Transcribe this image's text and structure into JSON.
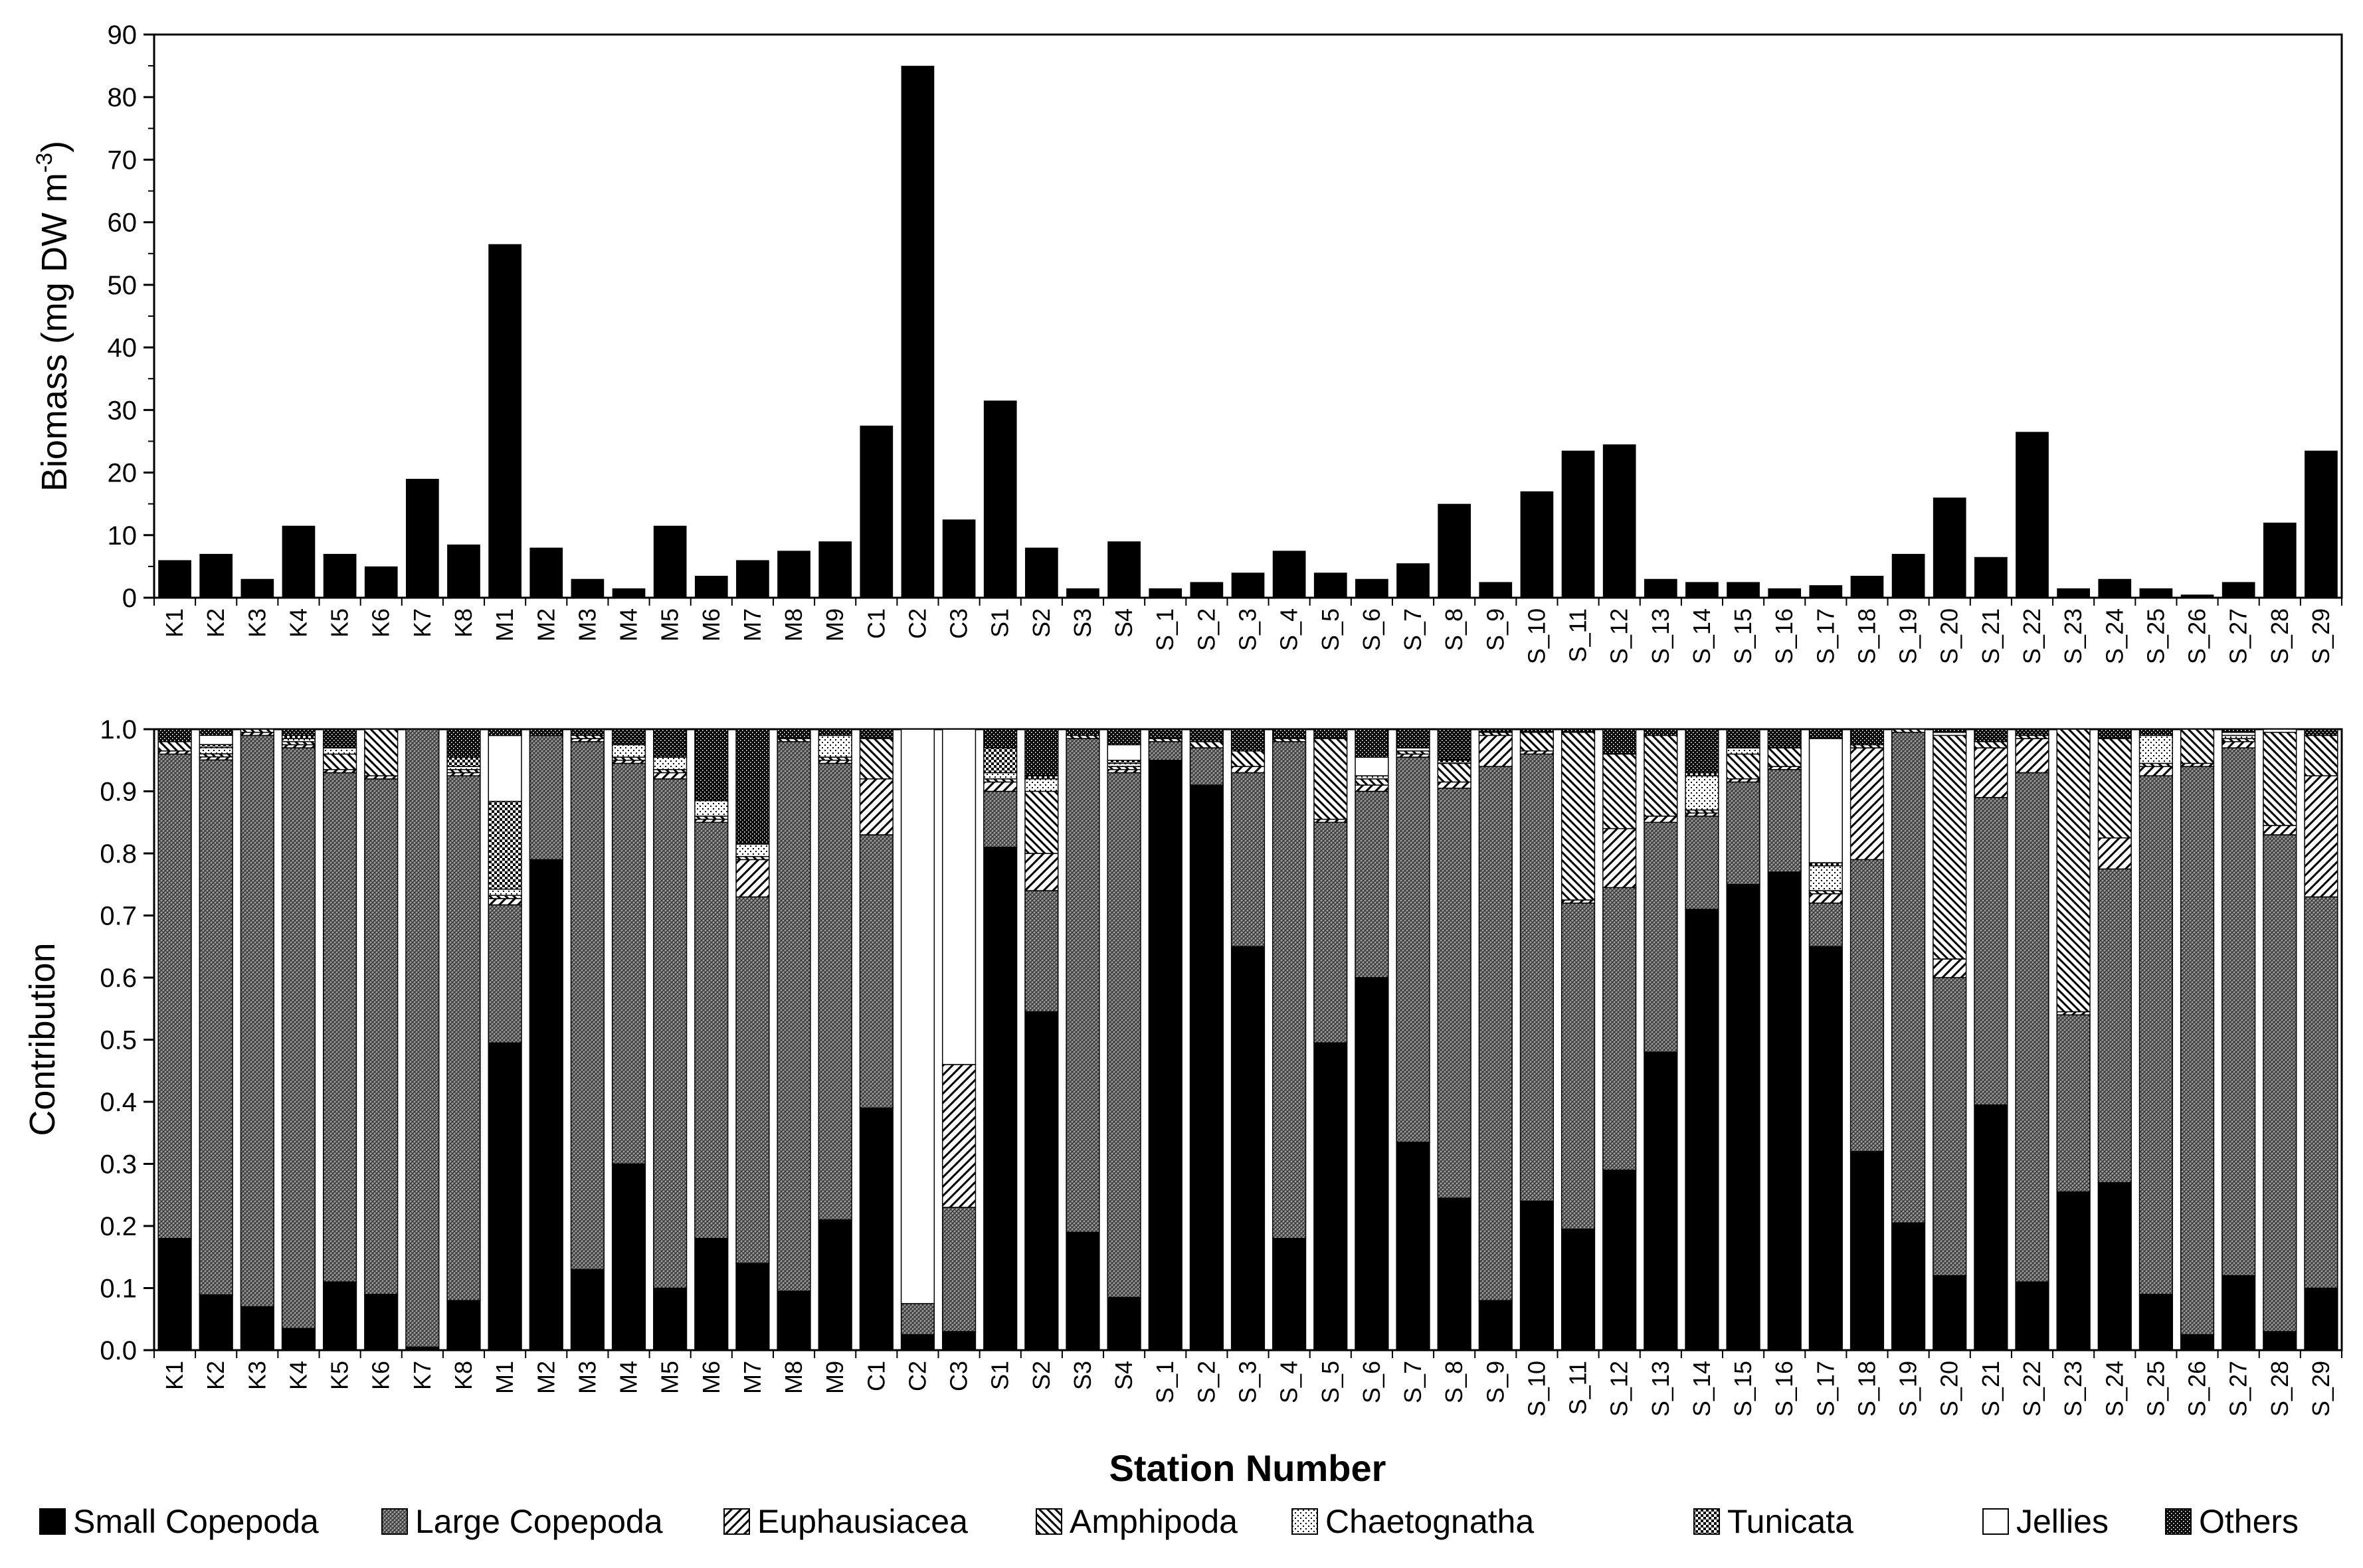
{
  "colors": {
    "small_copepoda": "#000000",
    "large_copepoda": "#7a7a7a",
    "euphausiacea": "#b8b8b8",
    "amphipoda": "#9a9a9a",
    "chaetognatha": "#e6e6e6",
    "tunicata": "#8c8c8c",
    "jellies": "#ffffff",
    "others": "#2e2e2e"
  },
  "chart_data": [
    {
      "type": "bar",
      "ylabel": "Biomass (mg DW m",
      "ylabel_sup": "-3",
      "ylabel_close": ")",
      "ylim": [
        0,
        90
      ],
      "yticks": [
        "0",
        "10",
        "20",
        "30",
        "40",
        "50",
        "60",
        "70",
        "80",
        "90"
      ],
      "categories": [
        "K1",
        "K2",
        "K3",
        "K4",
        "K5",
        "K6",
        "K7",
        "K8",
        "M1",
        "M2",
        "M3",
        "M4",
        "M5",
        "M6",
        "M7",
        "M8",
        "M9",
        "C1",
        "C2",
        "C3",
        "S1",
        "S2",
        "S3",
        "S4",
        "S_1",
        "S_2",
        "S_3",
        "S_4",
        "S_5",
        "S_6",
        "S_7",
        "S_8",
        "S_9",
        "S_10",
        "S_11",
        "S_12",
        "S_13",
        "S_14",
        "S_15",
        "S_16",
        "S_17",
        "S_18",
        "S_19",
        "S_20",
        "S_21",
        "S_22",
        "S_23",
        "S_24",
        "S_25",
        "S_26",
        "S_27",
        "S_28",
        "S_29"
      ],
      "values": [
        6,
        7,
        3,
        11.5,
        7,
        5,
        19,
        8.5,
        56.5,
        8,
        3,
        1.5,
        11.5,
        3.5,
        6,
        7.5,
        9,
        27.5,
        85,
        12.5,
        31.5,
        8,
        1.5,
        9,
        1.5,
        2.5,
        4,
        7.5,
        4,
        3,
        5.5,
        15,
        2.5,
        17,
        23.5,
        24.5,
        3,
        2.5,
        2.5,
        1.5,
        2,
        3.5,
        7,
        16,
        6.5,
        26.5,
        1.5,
        3,
        1.5,
        0.5,
        2.5,
        12,
        23.5
      ]
    },
    {
      "type": "bar",
      "stacked": true,
      "ylabel": "Contribution",
      "xlabel": "Station Number",
      "ylim": [
        0,
        1
      ],
      "yticks": [
        "0.0",
        "0.1",
        "0.2",
        "0.3",
        "0.4",
        "0.5",
        "0.6",
        "0.7",
        "0.8",
        "0.9",
        "1.0"
      ],
      "legend_position": "bottom",
      "categories": [
        "K1",
        "K2",
        "K3",
        "K4",
        "K5",
        "K6",
        "K7",
        "K8",
        "M1",
        "M2",
        "M3",
        "M4",
        "M5",
        "M6",
        "M7",
        "M8",
        "M9",
        "C1",
        "C2",
        "C3",
        "S1",
        "S2",
        "S3",
        "S4",
        "S_1",
        "S_2",
        "S_3",
        "S_4",
        "S_5",
        "S_6",
        "S_7",
        "S_8",
        "S_9",
        "S_10",
        "S_11",
        "S_12",
        "S_13",
        "S_14",
        "S_15",
        "S_16",
        "S_17",
        "S_18",
        "S_19",
        "S_20",
        "S_21",
        "S_22",
        "S_23",
        "S_24",
        "S_25",
        "S_26",
        "S_27",
        "S_28",
        "S_29"
      ],
      "series": [
        {
          "name": "Small Copepoda",
          "values": [
            0.18,
            0.09,
            0.07,
            0.035,
            0.11,
            0.09,
            0.005,
            0.08,
            0.49,
            0.79,
            0.13,
            0.3,
            0.1,
            0.18,
            0.14,
            0.095,
            0.21,
            0.39,
            0.025,
            0.03,
            0.81,
            0.545,
            0.19,
            0.085,
            0.95,
            0.91,
            0.65,
            0.18,
            0.495,
            0.6,
            0.335,
            0.245,
            0.08,
            0.24,
            0.195,
            0.29,
            0.48,
            0.71,
            0.75,
            0.77,
            0.65,
            0.32,
            0.205,
            0.12,
            0.395,
            0.11,
            0.255,
            0.27,
            0.09,
            0.025,
            0.12,
            0.03,
            0.1
          ]
        },
        {
          "name": "Large Copepoda",
          "values": [
            0.78,
            0.87,
            0.92,
            0.935,
            0.82,
            0.83,
            0.995,
            0.845,
            0.22,
            0.2,
            0.85,
            0.645,
            0.82,
            0.67,
            0.59,
            0.885,
            0.735,
            0.44,
            0.05,
            0.2,
            0.09,
            0.195,
            0.795,
            0.845,
            0.03,
            0.06,
            0.28,
            0.8,
            0.355,
            0.3,
            0.62,
            0.66,
            0.86,
            0.72,
            0.525,
            0.455,
            0.37,
            0.15,
            0.165,
            0.165,
            0.07,
            0.47,
            0.79,
            0.48,
            0.495,
            0.82,
            0.285,
            0.505,
            0.835,
            0.915,
            0.85,
            0.8,
            0.63
          ]
        },
        {
          "name": "Euphausiacea",
          "values": [
            0.005,
            0.005,
            0.005,
            0.005,
            0.005,
            0.005,
            0,
            0.005,
            0.01,
            0,
            0.005,
            0.005,
            0.01,
            0.005,
            0.06,
            0,
            0.005,
            0.09,
            0,
            0.23,
            0.015,
            0.06,
            0,
            0.005,
            0,
            0,
            0.01,
            0,
            0.005,
            0.01,
            0.005,
            0.01,
            0.05,
            0.005,
            0.005,
            0.095,
            0.01,
            0.005,
            0.005,
            0.005,
            0.015,
            0.18,
            0,
            0.03,
            0.08,
            0.055,
            0.005,
            0.05,
            0.015,
            0.005,
            0.01,
            0.015,
            0.195
          ]
        },
        {
          "name": "Amphipoda",
          "values": [
            0.015,
            0.005,
            0.005,
            0.005,
            0.025,
            0.075,
            0,
            0.005,
            0.005,
            0,
            0.005,
            0.005,
            0.005,
            0.005,
            0.005,
            0.005,
            0.005,
            0.065,
            0,
            0,
            0.005,
            0.1,
            0.005,
            0.005,
            0.005,
            0.01,
            0.025,
            0.005,
            0.13,
            0.01,
            0.005,
            0.03,
            0.005,
            0.03,
            0.27,
            0.12,
            0.13,
            0.005,
            0.04,
            0.03,
            0.005,
            0.005,
            0.005,
            0.36,
            0.01,
            0.005,
            0.455,
            0.16,
            0.005,
            0.055,
            0.005,
            0.15,
            0.065
          ]
        },
        {
          "name": "Chaetognatha",
          "values": [
            0,
            0.01,
            0,
            0.005,
            0.01,
            0,
            0,
            0.005,
            0.01,
            0,
            0,
            0.02,
            0.02,
            0.025,
            0.02,
            0,
            0.035,
            0,
            0,
            0,
            0.01,
            0.02,
            0,
            0.005,
            0,
            0,
            0,
            0,
            0,
            0.005,
            0,
            0,
            0,
            0,
            0,
            0,
            0,
            0.055,
            0.01,
            0,
            0.04,
            0,
            0,
            0,
            0,
            0,
            0,
            0,
            0.045,
            0,
            0.005,
            0,
            0
          ]
        },
        {
          "name": "Tunicata",
          "values": [
            0,
            0.005,
            0,
            0.005,
            0,
            0,
            0,
            0.015,
            0.14,
            0,
            0,
            0,
            0,
            0,
            0,
            0,
            0,
            0,
            0,
            0,
            0.04,
            0.005,
            0,
            0.005,
            0,
            0,
            0,
            0,
            0,
            0,
            0,
            0.005,
            0,
            0,
            0,
            0,
            0,
            0.005,
            0,
            0,
            0.005,
            0,
            0,
            0,
            0,
            0,
            0,
            0,
            0,
            0,
            0,
            0,
            0
          ]
        },
        {
          "name": "Jellies",
          "values": [
            0,
            0.015,
            0,
            0,
            0,
            0,
            0,
            0,
            0.105,
            0,
            0,
            0,
            0,
            0,
            0,
            0,
            0,
            0,
            0.925,
            0.54,
            0,
            0,
            0,
            0.025,
            0,
            0,
            0,
            0,
            0,
            0.03,
            0.005,
            0,
            0,
            0,
            0,
            0,
            0,
            0,
            0,
            0,
            0.2,
            0,
            0,
            0.005,
            0,
            0,
            0,
            0,
            0,
            0,
            0.005,
            0.005,
            0
          ]
        },
        {
          "name": "Others",
          "values": [
            0.02,
            0.01,
            0,
            0.01,
            0.03,
            0,
            0,
            0.045,
            0.01,
            0.01,
            0.01,
            0.025,
            0.045,
            0.115,
            0.185,
            0.015,
            0.01,
            0.015,
            0,
            0,
            0.03,
            0.075,
            0.01,
            0.025,
            0.015,
            0.02,
            0.035,
            0.015,
            0.015,
            0.045,
            0.03,
            0.05,
            0.005,
            0.005,
            0.005,
            0.04,
            0.01,
            0.07,
            0.03,
            0.03,
            0.015,
            0.025,
            0,
            0.005,
            0.02,
            0.01,
            0,
            0.015,
            0.01,
            0,
            0.005,
            0,
            0.01
          ]
        }
      ]
    }
  ]
}
